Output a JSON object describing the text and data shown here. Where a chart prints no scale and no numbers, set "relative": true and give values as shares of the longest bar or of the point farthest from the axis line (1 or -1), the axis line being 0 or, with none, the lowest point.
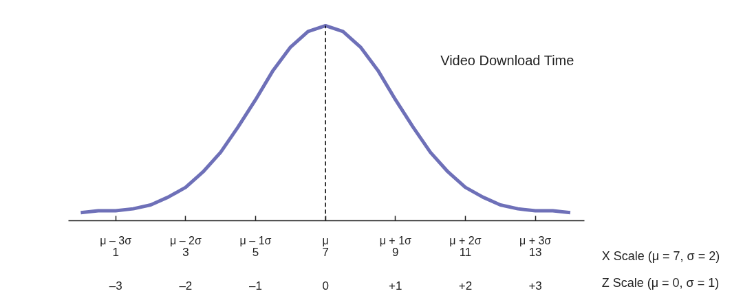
{
  "chart_data": {
    "type": "line",
    "title": "Video Download Time",
    "relative": true,
    "x": [
      0,
      0.5,
      1,
      1.5,
      2,
      2.5,
      3,
      3.5,
      4,
      4.5,
      5,
      5.5,
      6,
      6.5,
      7,
      7.5,
      8,
      8.5,
      9,
      9.5,
      10,
      10.5,
      11,
      11.5,
      12,
      12.5,
      13,
      13.5,
      14
    ],
    "series": [
      {
        "color": "#6e70b8",
        "values": [
          0.04,
          0.05,
          0.05,
          0.06,
          0.08,
          0.12,
          0.17,
          0.25,
          0.35,
          0.48,
          0.62,
          0.77,
          0.89,
          0.97,
          1.0,
          0.97,
          0.89,
          0.77,
          0.62,
          0.48,
          0.35,
          0.25,
          0.17,
          0.12,
          0.08,
          0.06,
          0.05,
          0.05,
          0.04
        ]
      }
    ],
    "xlim": [
      -0.35,
      14.4
    ],
    "xticks": [
      1,
      3,
      5,
      7,
      9,
      11,
      13
    ],
    "xlabel": "X Scale (μ = 7, σ = 2)",
    "x2lim": [
      -3.675,
      3.7
    ],
    "x2ticks": [
      {
        "value": -3,
        "label": "–3"
      },
      {
        "value": -2,
        "label": "–2"
      },
      {
        "value": -1,
        "label": "–1"
      },
      0,
      {
        "value": 1,
        "label": "+1"
      },
      {
        "value": 2,
        "label": "+2"
      },
      {
        "value": 3,
        "label": "+3"
      }
    ],
    "x2label": "Z Scale (μ = 0, σ = 1)",
    "annotations": [
      "μ – 3σ",
      "μ – 2σ",
      "μ – 1σ",
      "μ",
      "μ + 1σ",
      "μ + 2σ",
      "μ + 3σ"
    ],
    "ref_lines": [
      {
        "axis": "x",
        "value": 7,
        "color": "#000000",
        "line_style": "dashed"
      }
    ]
  }
}
